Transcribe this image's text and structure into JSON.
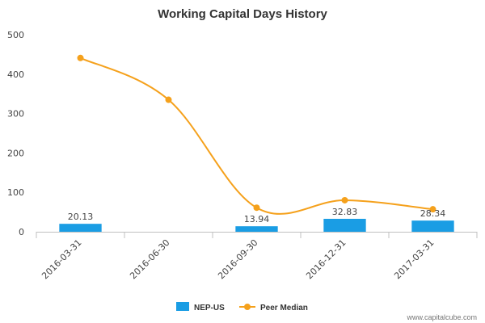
{
  "chart_data": {
    "type": "bar",
    "title": "Working Capital Days History",
    "xlabel": "",
    "ylabel": "",
    "categories": [
      "2016-03-31",
      "2016-06-30",
      "2016-09-30",
      "2016-12-31",
      "2017-03-31"
    ],
    "ylim": [
      0,
      500
    ],
    "yticks": [
      0,
      100,
      200,
      300,
      400,
      500
    ],
    "grid": false,
    "legend_position": "bottom",
    "series": [
      {
        "name": "NEP-US",
        "type": "bar",
        "color": "#1a9de4",
        "values": [
          20.13,
          null,
          13.94,
          32.83,
          28.34
        ],
        "labels": [
          "20.13",
          "",
          "13.94",
          "32.83",
          "28.34"
        ]
      },
      {
        "name": "Peer Median",
        "type": "line",
        "color": "#f5a11c",
        "values": [
          441,
          335,
          61,
          80,
          57
        ]
      }
    ]
  },
  "credit": "www.capitalcube.com"
}
